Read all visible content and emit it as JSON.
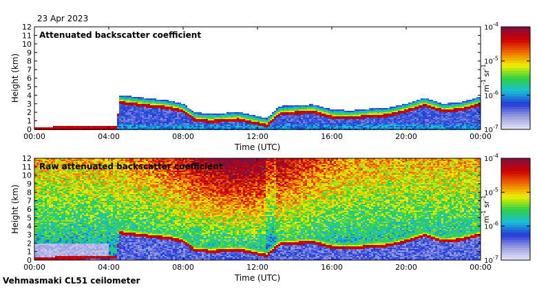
{
  "date": "23 Apr 2023",
  "instrument": "Vehmasmaki CL51 ceilometer",
  "colormap": [
    "#e8e8f8",
    "#9aa0e0",
    "#2438d8",
    "#18c0d8",
    "#30d040",
    "#f0f000",
    "#f07000",
    "#d00000",
    "#801040"
  ],
  "chart_data": [
    {
      "type": "heatmap",
      "title": "Attenuated backscatter coefficient",
      "xlabel": "Time (UTC)",
      "ylabel": "Height (km)",
      "x_ticks": [
        "00:00",
        "04:00",
        "08:00",
        "12:00",
        "16:00",
        "20:00",
        "00:00"
      ],
      "x_tick_hours": [
        0,
        4,
        8,
        12,
        16,
        20,
        24
      ],
      "xlim_hours": [
        0,
        24
      ],
      "y_ticks": [
        0,
        1,
        2,
        3,
        4,
        5,
        6,
        7,
        8,
        9,
        10,
        11,
        12
      ],
      "ylim_km": [
        0,
        12
      ],
      "colorbar": {
        "scale": "log",
        "label_base": "m",
        "label_exp1": "-1",
        "label_mid": " sr",
        "label_exp2": "-1",
        "tick_base": "10",
        "tick_exps": [
          "-4",
          "-5",
          "-6",
          "-7"
        ],
        "range": [
          1e-07,
          0.0001
        ]
      },
      "cloud_base_km": [
        {
          "t": 0.0,
          "h": 0.2
        },
        {
          "t": 4.4,
          "h": 0.3
        },
        {
          "t": 4.6,
          "h": 3.2
        },
        {
          "t": 5.0,
          "h": 3.1
        },
        {
          "t": 6.6,
          "h": 2.7
        },
        {
          "t": 7.2,
          "h": 2.6
        },
        {
          "t": 8.0,
          "h": 2.2
        },
        {
          "t": 8.6,
          "h": 1.2
        },
        {
          "t": 9.5,
          "h": 1.0
        },
        {
          "t": 11.0,
          "h": 1.2
        },
        {
          "t": 12.5,
          "h": 0.5
        },
        {
          "t": 13.2,
          "h": 1.9
        },
        {
          "t": 15.0,
          "h": 2.1
        },
        {
          "t": 16.0,
          "h": 1.5
        },
        {
          "t": 17.0,
          "h": 1.4
        },
        {
          "t": 18.0,
          "h": 1.6
        },
        {
          "t": 19.0,
          "h": 1.7
        },
        {
          "t": 20.0,
          "h": 2.2
        },
        {
          "t": 21.0,
          "h": 2.9
        },
        {
          "t": 22.0,
          "h": 2.2
        },
        {
          "t": 23.0,
          "h": 2.4
        },
        {
          "t": 24.0,
          "h": 3.0
        }
      ]
    },
    {
      "type": "heatmap",
      "title": "Raw attenuated backscatter coefficient",
      "xlabel": "Time (UTC)",
      "ylabel": "Height (km)",
      "x_ticks": [
        "00:00",
        "04:00",
        "08:00",
        "12:00",
        "16:00",
        "20:00",
        "00:00"
      ],
      "x_tick_hours": [
        0,
        4,
        8,
        12,
        16,
        20,
        24
      ],
      "xlim_hours": [
        0,
        24
      ],
      "y_ticks": [
        0,
        1,
        2,
        3,
        4,
        5,
        6,
        7,
        8,
        9,
        10,
        11,
        12
      ],
      "ylim_km": [
        0,
        12
      ],
      "colorbar": {
        "scale": "log",
        "label_base": "m",
        "label_exp1": "-1",
        "label_mid": " sr",
        "label_exp2": "-1",
        "tick_base": "10",
        "tick_exps": [
          "-4",
          "-5",
          "-6",
          "-7"
        ],
        "range": [
          1e-07,
          0.0001
        ]
      },
      "cloud_base_km": [
        {
          "t": 0.0,
          "h": 0.2
        },
        {
          "t": 4.4,
          "h": 0.3
        },
        {
          "t": 4.6,
          "h": 3.2
        },
        {
          "t": 5.0,
          "h": 3.1
        },
        {
          "t": 6.6,
          "h": 2.7
        },
        {
          "t": 7.2,
          "h": 2.6
        },
        {
          "t": 8.0,
          "h": 2.2
        },
        {
          "t": 8.6,
          "h": 1.2
        },
        {
          "t": 9.5,
          "h": 1.0
        },
        {
          "t": 11.0,
          "h": 1.2
        },
        {
          "t": 12.5,
          "h": 0.5
        },
        {
          "t": 13.2,
          "h": 1.9
        },
        {
          "t": 15.0,
          "h": 2.1
        },
        {
          "t": 16.0,
          "h": 1.5
        },
        {
          "t": 17.0,
          "h": 1.4
        },
        {
          "t": 18.0,
          "h": 1.6
        },
        {
          "t": 19.0,
          "h": 1.7
        },
        {
          "t": 20.0,
          "h": 2.2
        },
        {
          "t": 21.0,
          "h": 2.9
        },
        {
          "t": 22.0,
          "h": 2.2
        },
        {
          "t": 23.0,
          "h": 2.4
        },
        {
          "t": 24.0,
          "h": 3.0
        }
      ]
    }
  ]
}
